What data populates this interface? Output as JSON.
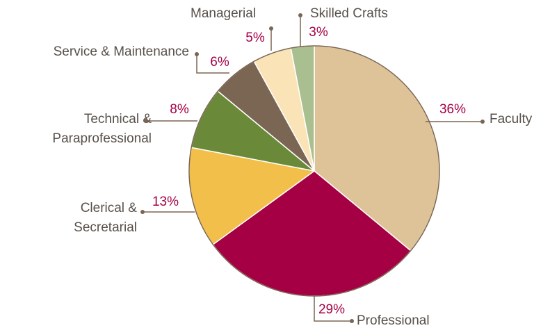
{
  "chart_data": {
    "type": "pie",
    "categories": [
      "Faculty",
      "Professional",
      "Clerical & Secretarial",
      "Technical & Paraprofessional",
      "Service & Maintenance",
      "Managerial",
      "Skilled Crafts"
    ],
    "values": [
      36,
      29,
      13,
      8,
      6,
      5,
      3
    ],
    "value_labels": [
      "36%",
      "29%",
      "13%",
      "8%",
      "6%",
      "5%",
      "3%"
    ],
    "colors": [
      "#dfc398",
      "#a50044",
      "#f2bf4b",
      "#6a8a3a",
      "#7a6652",
      "#fbe3b8",
      "#a9bf8f"
    ]
  }
}
